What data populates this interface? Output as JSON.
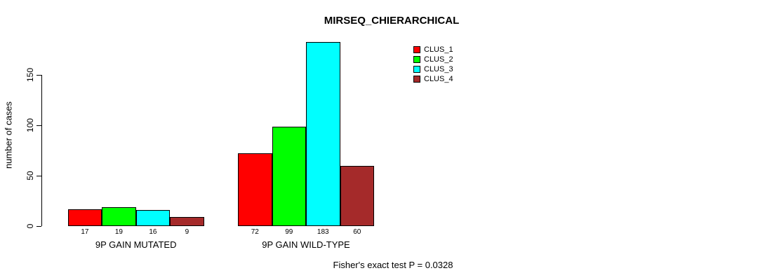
{
  "chart_data": {
    "type": "bar",
    "title": "MIRSEQ_CHIERARCHICAL",
    "xlabel": "",
    "ylabel": "number of cases",
    "ylim": [
      0,
      150
    ],
    "yticks": [
      0,
      50,
      100,
      150
    ],
    "grid": false,
    "legend_position": "top-right",
    "bar_value_labels": true,
    "categories": [
      "9P GAIN MUTATED",
      "9P GAIN WILD-TYPE"
    ],
    "series": [
      {
        "name": "CLUS_1",
        "color": "#ff0000",
        "values": [
          17,
          72
        ]
      },
      {
        "name": "CLUS_2",
        "color": "#00ff00",
        "values": [
          19,
          99
        ]
      },
      {
        "name": "CLUS_3",
        "color": "#00ffff",
        "values": [
          16,
          183
        ]
      },
      {
        "name": "CLUS_4",
        "color": "#a52a2a",
        "values": [
          9,
          60
        ]
      }
    ],
    "annotation": "Fisher's exact test P = 0.0328"
  }
}
